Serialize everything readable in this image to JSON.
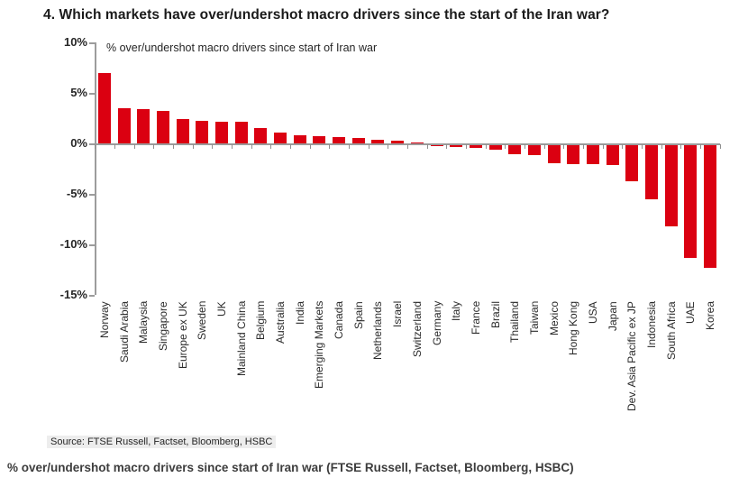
{
  "chart_data": {
    "type": "bar",
    "title": "4. Which markets have over/undershot macro drivers since the start of the Iran war?",
    "plot_label": "% over/undershot macro drivers since start of Iran war",
    "categories": [
      "Norway",
      "Saudi Arabia",
      "Malaysia",
      "Singapore",
      "Europe ex UK",
      "Sweden",
      "UK",
      "Mainland China",
      "Belgium",
      "Australia",
      "India",
      "Emerging Markets",
      "Canada",
      "Spain",
      "Netherlands",
      "Israel",
      "Switzerland",
      "Germany",
      "Italy",
      "France",
      "Brazil",
      "Thailand",
      "Taiwan",
      "Mexico",
      "Hong Kong",
      "USA",
      "Japan",
      "Dev. Asia Pacific ex JP",
      "Indonesia",
      "South Africa",
      "UAE",
      "Korea"
    ],
    "values": [
      7.0,
      3.5,
      3.4,
      3.2,
      2.4,
      2.2,
      2.1,
      2.1,
      1.5,
      1.1,
      0.8,
      0.7,
      0.6,
      0.5,
      0.4,
      0.3,
      0.1,
      -0.1,
      -0.2,
      -0.3,
      -0.5,
      -0.9,
      -1.0,
      -1.8,
      -1.9,
      -1.9,
      -2.0,
      -3.6,
      -5.4,
      -8.1,
      -11.2,
      -12.2
    ],
    "xlabel": "",
    "ylabel": "",
    "ylim": [
      -15,
      10
    ],
    "yticks": [
      10,
      5,
      0,
      -5,
      -10,
      -15
    ],
    "ytick_labels": [
      "10%",
      "5%",
      "0%",
      "-5%",
      "-10%",
      "-15%"
    ],
    "grid": false,
    "legend_position": "none",
    "bar_color": "#db0011",
    "axis_color": "#9c9c9c",
    "source_note": "Source: FTSE Russell, Factset, Bloomberg, HSBC"
  },
  "caption": "% over/undershot macro drivers since start of Iran war (FTSE Russell, Factset, Bloomberg, HSBC)"
}
